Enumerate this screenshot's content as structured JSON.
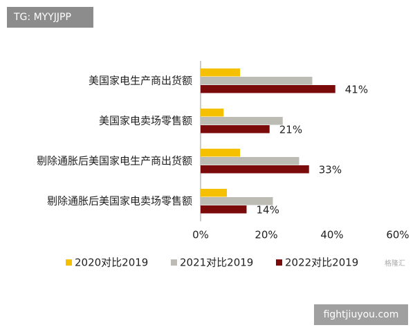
{
  "chart_data": {
    "type": "bar",
    "orientation": "horizontal",
    "categories": [
      "美国家电生产商出货额",
      "美国家电卖场零售额",
      "剔除通胀后美国家电生产商出货额",
      "剔除通胀后美国家电卖场零售额"
    ],
    "series": [
      {
        "name": "2020对比2019",
        "color": "#f5c000",
        "values": [
          12,
          7,
          12,
          8
        ]
      },
      {
        "name": "2021对比2019",
        "color": "#bdbcb4",
        "values": [
          34,
          25,
          30,
          22
        ]
      },
      {
        "name": "2022对比2019",
        "color": "#7b0b0b",
        "values": [
          41,
          21,
          33,
          14
        ],
        "value_labels": [
          "41%",
          "21%",
          "33%",
          "14%"
        ]
      }
    ],
    "xlim": [
      0,
      60
    ],
    "xticks": [
      {
        "value": 0,
        "label": "0%"
      },
      {
        "value": 20,
        "label": "20%"
      },
      {
        "value": 40,
        "label": "40%"
      },
      {
        "value": 60,
        "label": "60%"
      }
    ],
    "legend": "bottom"
  },
  "watermarks": [
    "TG: MYYJJPP",
    "fightjiuyou.com",
    "格隆汇"
  ]
}
